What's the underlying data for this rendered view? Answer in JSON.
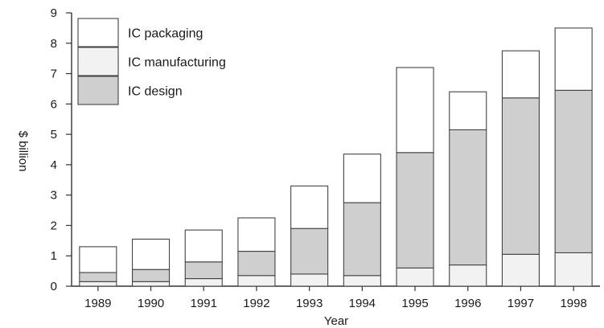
{
  "chart_data": {
    "type": "bar",
    "stacked": true,
    "categories": [
      "1989",
      "1990",
      "1991",
      "1992",
      "1993",
      "1994",
      "1995",
      "1996",
      "1997",
      "1998"
    ],
    "series": [
      {
        "name": "IC manufacturing",
        "color": "#f2f2f2",
        "values": [
          0.15,
          0.15,
          0.25,
          0.35,
          0.4,
          0.35,
          0.6,
          0.7,
          1.05,
          1.1
        ]
      },
      {
        "name": "IC design",
        "color": "#cfcfcf",
        "values": [
          0.3,
          0.4,
          0.55,
          0.8,
          1.5,
          2.4,
          3.8,
          4.45,
          5.15,
          5.35
        ]
      },
      {
        "name": "IC packaging",
        "color": "#ffffff",
        "values": [
          0.85,
          1.0,
          1.05,
          1.1,
          1.4,
          1.6,
          2.8,
          1.25,
          1.55,
          2.05
        ]
      }
    ],
    "legend_order": [
      "IC packaging",
      "IC manufacturing",
      "IC design"
    ],
    "xlabel": "Year",
    "ylabel": "$ billion",
    "ylim": [
      0,
      9
    ],
    "yticks": [
      "0",
      "1",
      "2",
      "3",
      "4",
      "5",
      "6",
      "7",
      "8",
      "9"
    ],
    "grid": false,
    "legend_position": "top-left"
  }
}
